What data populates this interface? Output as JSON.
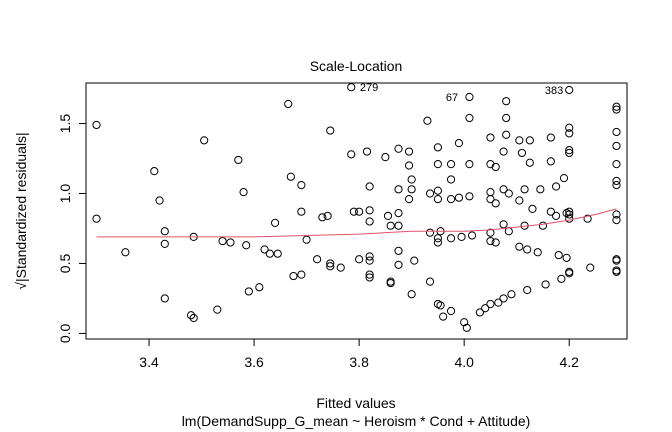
{
  "chart_data": {
    "type": "scatter",
    "title": "Scale-Location",
    "xlabel": "Fitted values",
    "subtitle": "lm(DemandSupp_G_mean ~ Heroism * Cond + Attitude)",
    "ylabel": "√|Standardized residuals|",
    "xlim": [
      3.28,
      4.31
    ],
    "ylim": [
      -0.04,
      1.79
    ],
    "x_ticks": [
      "3.4",
      "3.6",
      "3.8",
      "4.0",
      "4.2"
    ],
    "x_tick_values": [
      3.4,
      3.6,
      3.8,
      4.0,
      4.2
    ],
    "y_ticks": [
      "0.0",
      "0.5",
      "1.0",
      "1.5"
    ],
    "y_tick_values": [
      0.0,
      0.5,
      1.0,
      1.5
    ],
    "grid": false,
    "smoother_color": "#DF536B",
    "point_color": "#000000",
    "annotations": [
      {
        "label": "279",
        "x": 3.79,
        "y": 1.76
      },
      {
        "label": "67",
        "x": 4.0,
        "y": 1.69
      },
      {
        "label": "383",
        "x": 4.2,
        "y": 1.74
      }
    ],
    "smoother": {
      "x": [
        3.3,
        3.45,
        3.6,
        3.7,
        3.8,
        3.9,
        3.95,
        4.0,
        4.05,
        4.1,
        4.15,
        4.2,
        4.25,
        4.29
      ],
      "y": [
        0.69,
        0.69,
        0.69,
        0.7,
        0.71,
        0.73,
        0.73,
        0.73,
        0.74,
        0.76,
        0.78,
        0.81,
        0.85,
        0.89
      ]
    },
    "points": [
      [
        3.3,
        1.49
      ],
      [
        3.3,
        0.82
      ],
      [
        3.355,
        0.58
      ],
      [
        3.41,
        1.16
      ],
      [
        3.42,
        0.95
      ],
      [
        3.43,
        0.73
      ],
      [
        3.43,
        0.64
      ],
      [
        3.43,
        0.25
      ],
      [
        3.48,
        0.13
      ],
      [
        3.485,
        0.11
      ],
      [
        3.485,
        0.69
      ],
      [
        3.505,
        1.38
      ],
      [
        3.53,
        0.17
      ],
      [
        3.54,
        0.66
      ],
      [
        3.555,
        0.65
      ],
      [
        3.57,
        1.24
      ],
      [
        3.58,
        1.01
      ],
      [
        3.585,
        0.63
      ],
      [
        3.59,
        0.3
      ],
      [
        3.61,
        0.33
      ],
      [
        3.62,
        0.6
      ],
      [
        3.63,
        0.57
      ],
      [
        3.64,
        0.79
      ],
      [
        3.645,
        0.57
      ],
      [
        3.665,
        1.64
      ],
      [
        3.67,
        1.12
      ],
      [
        3.675,
        0.41
      ],
      [
        3.69,
        0.42
      ],
      [
        3.69,
        1.06
      ],
      [
        3.69,
        0.87
      ],
      [
        3.7,
        0.67
      ],
      [
        3.72,
        0.53
      ],
      [
        3.73,
        0.83
      ],
      [
        3.74,
        0.84
      ],
      [
        3.745,
        1.45
      ],
      [
        3.745,
        0.5
      ],
      [
        3.745,
        0.48
      ],
      [
        3.765,
        0.47
      ],
      [
        3.785,
        1.76
      ],
      [
        3.785,
        1.28
      ],
      [
        3.79,
        0.87
      ],
      [
        3.8,
        0.87
      ],
      [
        3.8,
        0.53
      ],
      [
        3.815,
        1.3
      ],
      [
        3.82,
        1.05
      ],
      [
        3.82,
        0.88
      ],
      [
        3.82,
        0.8
      ],
      [
        3.82,
        0.55
      ],
      [
        3.82,
        0.52
      ],
      [
        3.82,
        0.42
      ],
      [
        3.82,
        0.4
      ],
      [
        3.85,
        1.26
      ],
      [
        3.855,
        0.84
      ],
      [
        3.86,
        0.77
      ],
      [
        3.86,
        0.36
      ],
      [
        3.86,
        0.37
      ],
      [
        3.875,
        1.32
      ],
      [
        3.875,
        1.03
      ],
      [
        3.875,
        0.86
      ],
      [
        3.875,
        0.77
      ],
      [
        3.875,
        0.59
      ],
      [
        3.875,
        0.49
      ],
      [
        3.895,
        1.2
      ],
      [
        3.895,
        0.96
      ],
      [
        3.895,
        1.3
      ],
      [
        3.9,
        1.1
      ],
      [
        3.9,
        1.03
      ],
      [
        3.9,
        0.28
      ],
      [
        3.905,
        0.52
      ],
      [
        3.93,
        1.52
      ],
      [
        3.935,
        1.0
      ],
      [
        3.935,
        0.72
      ],
      [
        3.935,
        0.37
      ],
      [
        3.95,
        1.33
      ],
      [
        3.95,
        1.21
      ],
      [
        3.95,
        1.02
      ],
      [
        3.95,
        0.96
      ],
      [
        3.95,
        0.68
      ],
      [
        3.95,
        0.65
      ],
      [
        3.955,
        0.73
      ],
      [
        3.95,
        0.21
      ],
      [
        3.955,
        0.2
      ],
      [
        3.96,
        0.12
      ],
      [
        3.975,
        1.21
      ],
      [
        3.975,
        1.1
      ],
      [
        3.975,
        0.96
      ],
      [
        3.975,
        0.68
      ],
      [
        3.975,
        0.16
      ],
      [
        3.99,
        1.36
      ],
      [
        3.99,
        0.97
      ],
      [
        3.995,
        0.69
      ],
      [
        4.0,
        0.08
      ],
      [
        4.005,
        0.04
      ],
      [
        4.01,
        1.69
      ],
      [
        4.01,
        1.54
      ],
      [
        4.01,
        1.21
      ],
      [
        4.01,
        0.98
      ],
      [
        4.015,
        0.7
      ],
      [
        4.03,
        0.15
      ],
      [
        4.04,
        0.18
      ],
      [
        4.05,
        1.4
      ],
      [
        4.05,
        1.21
      ],
      [
        4.05,
        1.01
      ],
      [
        4.05,
        0.96
      ],
      [
        4.05,
        0.66
      ],
      [
        4.05,
        0.72
      ],
      [
        4.05,
        0.21
      ],
      [
        4.06,
        1.19
      ],
      [
        4.06,
        0.93
      ],
      [
        4.06,
        0.65
      ],
      [
        4.065,
        0.22
      ],
      [
        4.075,
        1.3
      ],
      [
        4.075,
        1.03
      ],
      [
        4.075,
        0.78
      ],
      [
        4.075,
        0.25
      ],
      [
        4.08,
        1.66
      ],
      [
        4.08,
        1.54
      ],
      [
        4.08,
        1.42
      ],
      [
        4.085,
        1.0
      ],
      [
        4.085,
        0.73
      ],
      [
        4.09,
        0.28
      ],
      [
        4.105,
        1.38
      ],
      [
        4.105,
        0.95
      ],
      [
        4.105,
        0.62
      ],
      [
        4.11,
        1.29
      ],
      [
        4.115,
        1.03
      ],
      [
        4.115,
        0.77
      ],
      [
        4.12,
        0.6
      ],
      [
        4.12,
        0.31
      ],
      [
        4.125,
        1.38
      ],
      [
        4.125,
        1.22
      ],
      [
        4.13,
        0.89
      ],
      [
        4.14,
        0.58
      ],
      [
        4.145,
        1.03
      ],
      [
        4.15,
        0.77
      ],
      [
        4.155,
        0.35
      ],
      [
        4.165,
        1.4
      ],
      [
        4.165,
        1.23
      ],
      [
        4.165,
        0.87
      ],
      [
        4.175,
        1.05
      ],
      [
        4.175,
        0.84
      ],
      [
        4.18,
        0.56
      ],
      [
        4.185,
        0.39
      ],
      [
        4.19,
        1.11
      ],
      [
        4.195,
        0.86
      ],
      [
        4.195,
        0.54
      ],
      [
        4.2,
        1.47
      ],
      [
        4.2,
        1.43
      ],
      [
        4.2,
        1.31
      ],
      [
        4.2,
        1.29
      ],
      [
        4.2,
        0.87
      ],
      [
        4.2,
        0.85
      ],
      [
        4.2,
        0.82
      ],
      [
        4.2,
        0.43
      ],
      [
        4.2,
        0.44
      ],
      [
        4.2,
        1.74
      ],
      [
        4.235,
        0.82
      ],
      [
        4.24,
        0.47
      ],
      [
        4.29,
        1.62
      ],
      [
        4.29,
        1.6
      ],
      [
        4.29,
        1.44
      ],
      [
        4.29,
        1.34
      ],
      [
        4.29,
        1.21
      ],
      [
        4.29,
        1.09
      ],
      [
        4.29,
        1.06
      ],
      [
        4.29,
        0.85
      ],
      [
        4.29,
        0.81
      ],
      [
        4.29,
        0.53
      ],
      [
        4.29,
        0.52
      ],
      [
        4.29,
        0.45
      ],
      [
        4.29,
        0.44
      ]
    ]
  }
}
